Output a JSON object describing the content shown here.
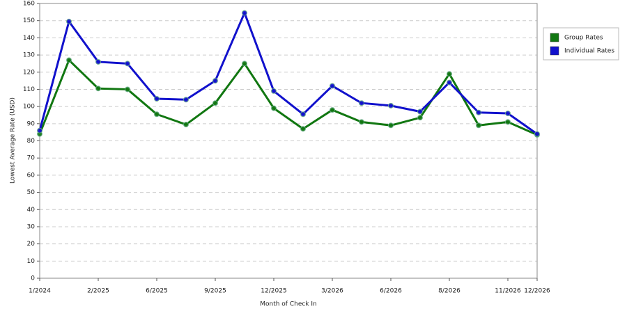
{
  "chart_data": {
    "type": "line",
    "x_label": "Month of Check In",
    "y_label": "Lowest Average Rate (USD)",
    "categories": [
      "1/2024",
      null,
      "2/2025",
      null,
      "6/2025",
      null,
      "9/2025",
      null,
      "12/2025",
      null,
      "3/2026",
      null,
      "6/2026",
      null,
      "8/2026",
      null,
      "11/2026",
      "12/2026"
    ],
    "series": [
      {
        "name": "Group Rates",
        "color": "#117711",
        "values": [
          84,
          127,
          110.5,
          110,
          95.5,
          89.5,
          102,
          125,
          99,
          87,
          98,
          91,
          89,
          93.5,
          119,
          89,
          91,
          83.5
        ]
      },
      {
        "name": "Individual Rates",
        "color": "#1111cc",
        "values": [
          86,
          149.5,
          126,
          125,
          104.5,
          104,
          115,
          154.5,
          109,
          95.5,
          112,
          102,
          100.5,
          97,
          114,
          96.5,
          96,
          84
        ]
      }
    ],
    "ylim": [
      0,
      160
    ],
    "yticks": [
      0,
      10,
      20,
      30,
      40,
      50,
      60,
      70,
      80,
      90,
      100,
      110,
      120,
      130,
      140,
      150,
      160
    ],
    "grid": true,
    "legend": "right"
  }
}
